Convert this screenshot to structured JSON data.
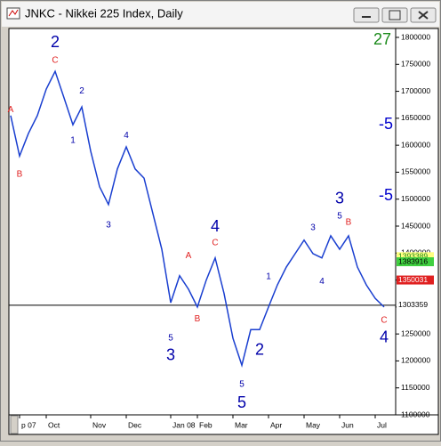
{
  "window": {
    "title": "JNKC - Nikkei 225 Index, Daily"
  },
  "chart_data": {
    "type": "line",
    "color": "#1a3fd0",
    "corner_label": "27",
    "categories": [
      null,
      "p 07",
      null,
      null,
      "Oct",
      null,
      null,
      null,
      null,
      "Nov",
      null,
      null,
      null,
      "Dec",
      null,
      null,
      null,
      null,
      "Jan 08",
      null,
      null,
      "Feb",
      null,
      null,
      null,
      "Mar",
      null,
      null,
      null,
      "Apr",
      null,
      null,
      null,
      "May",
      null,
      null,
      null,
      "Jun",
      null,
      null,
      null,
      "Jul",
      null
    ],
    "values": [
      1655000,
      1580000,
      1622000,
      1655000,
      1704000,
      1737000,
      1688000,
      1638000,
      1671000,
      1589000,
      1523000,
      1490000,
      1556000,
      1597000,
      1556000,
      1539000,
      1473000,
      1407000,
      1308000,
      1358000,
      1333000,
      1300000,
      1350000,
      1391000,
      1325000,
      1242000,
      1192000,
      1258000,
      1258000,
      1300000,
      1341000,
      1374000,
      1399000,
      1424000,
      1399000,
      1391000,
      1432000,
      1407000,
      1432000,
      1374000,
      1341000,
      1316000,
      1300000
    ],
    "ylim": [
      1100000,
      1800000
    ],
    "yticks": [
      1100000,
      1150000,
      1200000,
      1250000,
      1300000,
      1350000,
      1400000,
      1450000,
      1500000,
      1550000,
      1600000,
      1650000,
      1700000,
      1750000,
      1800000
    ],
    "price_markers": [
      {
        "value": 1393389,
        "color": "#1a8a1a",
        "background": "#ffff80"
      },
      {
        "value": 1383916,
        "color": "#000000",
        "background": "#40d040"
      },
      {
        "value": 1350031,
        "color": "#ffffff",
        "background": "#e02020"
      },
      {
        "value": 1303359,
        "color": "#000000",
        "background": "#ffffff"
      }
    ],
    "hline": 1303359,
    "annotations": [
      {
        "text": "2",
        "x": 5,
        "y": 1790000,
        "color": "#0000aa",
        "big": true
      },
      {
        "text": "C",
        "x": 5,
        "y": 1757000,
        "color": "#e02020",
        "big": false
      },
      {
        "text": "2",
        "x": 8,
        "y": 1700000,
        "color": "#0000aa",
        "big": false
      },
      {
        "text": "1",
        "x": 7,
        "y": 1609000,
        "color": "#0000aa",
        "big": false
      },
      {
        "text": "A",
        "x": 0,
        "y": 1666000,
        "color": "#e02020",
        "big": false
      },
      {
        "text": "B",
        "x": 1,
        "y": 1546000,
        "color": "#e02020",
        "big": false
      },
      {
        "text": "4",
        "x": 13,
        "y": 1618000,
        "color": "#0000aa",
        "big": false
      },
      {
        "text": "3",
        "x": 11,
        "y": 1452000,
        "color": "#0000aa",
        "big": false
      },
      {
        "text": "A",
        "x": 20,
        "y": 1395000,
        "color": "#e02020",
        "big": false
      },
      {
        "text": "B",
        "x": 21,
        "y": 1278000,
        "color": "#e02020",
        "big": false
      },
      {
        "text": "4",
        "x": 23,
        "y": 1448000,
        "color": "#0000aa",
        "big": true
      },
      {
        "text": "C",
        "x": 23,
        "y": 1419000,
        "color": "#e02020",
        "big": false
      },
      {
        "text": "5",
        "x": 18,
        "y": 1242000,
        "color": "#0000aa",
        "big": false
      },
      {
        "text": "3",
        "x": 18,
        "y": 1209000,
        "color": "#0000aa",
        "big": true
      },
      {
        "text": "5",
        "x": 26,
        "y": 1156000,
        "color": "#0000aa",
        "big": false
      },
      {
        "text": "5",
        "x": 26,
        "y": 1121000,
        "color": "#0000aa",
        "big": true
      },
      {
        "text": "2",
        "x": 28,
        "y": 1219000,
        "color": "#0000aa",
        "big": true
      },
      {
        "text": "1",
        "x": 29,
        "y": 1356000,
        "color": "#0000aa",
        "big": false
      },
      {
        "text": "3",
        "x": 34,
        "y": 1447000,
        "color": "#0000aa",
        "big": false
      },
      {
        "text": "3",
        "x": 37,
        "y": 1500000,
        "color": "#0000aa",
        "big": true
      },
      {
        "text": "5",
        "x": 37,
        "y": 1468000,
        "color": "#0000aa",
        "big": false
      },
      {
        "text": "B",
        "x": 38,
        "y": 1457000,
        "color": "#e02020",
        "big": false
      },
      {
        "text": "4",
        "x": 35,
        "y": 1347000,
        "color": "#0000aa",
        "big": false
      },
      {
        "text": "4",
        "x": 42,
        "y": 1242000,
        "color": "#0000aa",
        "big": true
      },
      {
        "text": "C",
        "x": 42,
        "y": 1275000,
        "color": "#e02020",
        "big": false
      }
    ],
    "side_marks": [
      {
        "text": "-5",
        "y": 1638000
      },
      {
        "text": "-5",
        "y": 1506000
      }
    ]
  }
}
